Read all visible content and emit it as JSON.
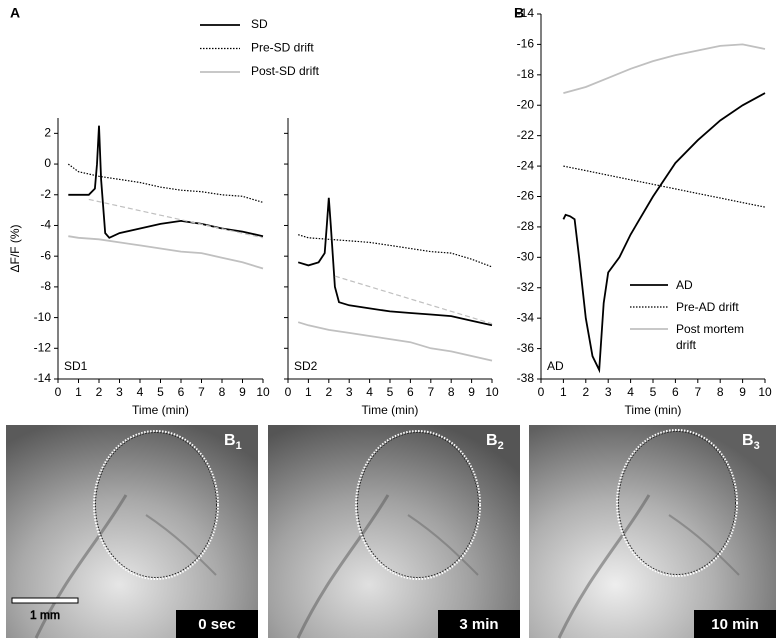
{
  "chart_data": [
    {
      "type": "line",
      "panel": "A",
      "label": "SD1",
      "ylabel": "ΔF/F (%)",
      "xlabel": "Time (min)",
      "xlim": [
        0,
        10
      ],
      "ylim": [
        -14,
        3
      ],
      "xticks": [
        0,
        1,
        2,
        3,
        4,
        5,
        6,
        7,
        8,
        9,
        10
      ],
      "yticks": [
        -14,
        -12,
        -10,
        -8,
        -6,
        -4,
        -2,
        0,
        2
      ],
      "legend": "top",
      "series": [
        {
          "name": "SD",
          "color": "#000000",
          "dash": "solid",
          "x": [
            0.5,
            1,
            1.5,
            1.8,
            1.9,
            2.0,
            2.1,
            2.3,
            2.5,
            3,
            4,
            5,
            6,
            7,
            8,
            9,
            10
          ],
          "values": [
            -2,
            -2,
            -2,
            -1.6,
            0,
            2.5,
            -1,
            -4.5,
            -4.8,
            -4.5,
            -4.2,
            -3.9,
            -3.7,
            -3.9,
            -4.2,
            -4.4,
            -4.7
          ]
        },
        {
          "name": "Pre-SD drift",
          "color": "#000000",
          "dash": "dotted",
          "x": [
            0.5,
            1,
            2,
            3,
            4,
            5,
            6,
            7,
            8,
            9,
            10
          ],
          "values": [
            0,
            -0.5,
            -0.8,
            -1,
            -1.2,
            -1.5,
            -1.7,
            -1.8,
            -2,
            -2.1,
            -2.5
          ]
        },
        {
          "name": "Post-SD drift",
          "color": "#c0c0c0",
          "dash": "solid",
          "x": [
            0.5,
            1,
            2,
            3,
            4,
            5,
            6,
            7,
            8,
            9,
            10
          ],
          "values": [
            -4.7,
            -4.8,
            -4.9,
            -5.1,
            -5.3,
            -5.5,
            -5.7,
            -5.8,
            -6.1,
            -6.4,
            -6.8
          ]
        },
        {
          "color": "#c0c0c0",
          "dash": "dashed",
          "x": [
            1.5,
            10
          ],
          "values": [
            -2.3,
            -4.8
          ]
        }
      ]
    },
    {
      "type": "line",
      "label": "SD2",
      "xlabel": "Time (min)",
      "xlim": [
        0,
        10
      ],
      "ylim": [
        -14,
        3
      ],
      "xticks": [
        0,
        1,
        2,
        3,
        4,
        5,
        6,
        7,
        8,
        9,
        10
      ],
      "series": [
        {
          "color": "#000000",
          "dash": "solid",
          "x": [
            0.5,
            1,
            1.5,
            1.8,
            1.9,
            2.0,
            2.1,
            2.3,
            2.5,
            3,
            4,
            5,
            6,
            7,
            8,
            9,
            10
          ],
          "values": [
            -6.4,
            -6.6,
            -6.4,
            -5.8,
            -4,
            -2.2,
            -4,
            -8,
            -9,
            -9.2,
            -9.4,
            -9.6,
            -9.7,
            -9.8,
            -9.9,
            -10.2,
            -10.5
          ]
        },
        {
          "color": "#000000",
          "dash": "dotted",
          "x": [
            0.5,
            1,
            2,
            3,
            4,
            5,
            6,
            7,
            8,
            9,
            10
          ],
          "values": [
            -4.6,
            -4.8,
            -4.9,
            -5,
            -5.1,
            -5.3,
            -5.5,
            -5.7,
            -5.8,
            -6.2,
            -6.7
          ]
        },
        {
          "color": "#c0c0c0",
          "dash": "solid",
          "x": [
            0.5,
            1,
            2,
            3,
            4,
            5,
            6,
            7,
            8,
            9,
            10
          ],
          "values": [
            -10.3,
            -10.5,
            -10.8,
            -11,
            -11.2,
            -11.4,
            -11.6,
            -12,
            -12.2,
            -12.5,
            -12.8
          ]
        },
        {
          "color": "#c0c0c0",
          "dash": "dashed",
          "x": [
            2.3,
            10
          ],
          "values": [
            -7.3,
            -10.4
          ]
        }
      ]
    },
    {
      "type": "line",
      "panel": "B",
      "label": "AD",
      "xlabel": "Time (min)",
      "xlim": [
        0,
        10
      ],
      "ylim": [
        -38,
        -14
      ],
      "xticks": [
        0,
        1,
        2,
        3,
        4,
        5,
        6,
        7,
        8,
        9,
        10
      ],
      "yticks": [
        -38,
        -36,
        -34,
        -32,
        -30,
        -28,
        -26,
        -24,
        -22,
        -20,
        -18,
        -16,
        -14
      ],
      "legend": "right",
      "series": [
        {
          "name": "AD",
          "color": "#000000",
          "dash": "solid",
          "x": [
            1,
            1.1,
            1.3,
            1.5,
            1.7,
            2,
            2.3,
            2.6,
            2.8,
            3,
            3.5,
            4,
            5,
            6,
            7,
            8,
            9,
            10
          ],
          "values": [
            -27.5,
            -27.2,
            -27.3,
            -27.5,
            -30,
            -34,
            -36.5,
            -37.4,
            -33,
            -31,
            -30,
            -28.5,
            -26,
            -23.8,
            -22.3,
            -21,
            -20,
            -19.2
          ]
        },
        {
          "name": "Pre-AD drift",
          "color": "#000000",
          "dash": "dotted",
          "x": [
            1,
            2,
            3,
            4,
            5,
            6,
            7,
            8,
            9,
            10
          ],
          "values": [
            -24,
            -24.3,
            -24.6,
            -24.9,
            -25.2,
            -25.5,
            -25.8,
            -26.1,
            -26.4,
            -26.7
          ]
        },
        {
          "name": "Post mortem drift",
          "color": "#c0c0c0",
          "dash": "solid",
          "x": [
            1,
            2,
            3,
            4,
            5,
            6,
            7,
            8,
            9,
            10
          ],
          "values": [
            -19.2,
            -18.8,
            -18.2,
            -17.6,
            -17.1,
            -16.7,
            -16.4,
            -16.1,
            -16,
            -16.3
          ]
        }
      ]
    }
  ],
  "images": [
    {
      "label": "B",
      "subscript": "1",
      "caption": "0 sec"
    },
    {
      "label": "B",
      "subscript": "2",
      "caption": "3 min"
    },
    {
      "label": "B",
      "subscript": "3",
      "caption": "10 min"
    }
  ],
  "scale_bar": "1 mm"
}
